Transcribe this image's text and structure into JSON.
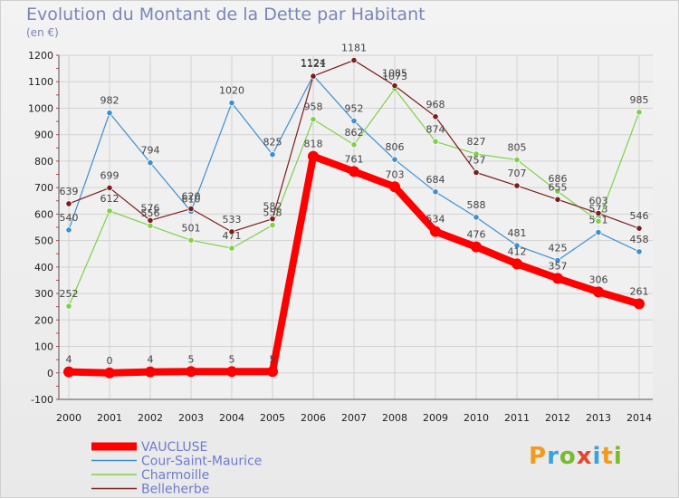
{
  "title": "Evolution du Montant de la Dette par Habitant",
  "subtitle": "(en €)",
  "logo_text": "Proxiti",
  "chart_data": {
    "type": "line",
    "x": [
      "2000",
      "2001",
      "2002",
      "2003",
      "2004",
      "2005",
      "2006",
      "2007",
      "2008",
      "2009",
      "2010",
      "2011",
      "2012",
      "2013",
      "2014"
    ],
    "ylim": [
      -100,
      1200
    ],
    "yticks": [
      -100,
      0,
      100,
      200,
      300,
      400,
      500,
      600,
      700,
      800,
      900,
      1000,
      1100,
      1200
    ],
    "grid": true,
    "legend_position": "bottom-left",
    "series": [
      {
        "name": "VAUCLUSE",
        "color": "#ff0000",
        "values": [
          4,
          0,
          4,
          5,
          5,
          5,
          818,
          761,
          703,
          534,
          476,
          412,
          357,
          306,
          261
        ]
      },
      {
        "name": "Cour-Saint-Maurice",
        "color": "#3d8fd1",
        "values": [
          540,
          982,
          794,
          610,
          1020,
          825,
          1124,
          952,
          806,
          684,
          588,
          481,
          425,
          531,
          458
        ]
      },
      {
        "name": "Charmoille",
        "color": "#7fd04a",
        "values": [
          252,
          612,
          556,
          501,
          471,
          558,
          958,
          862,
          1073,
          874,
          827,
          805,
          686,
          573,
          985
        ]
      },
      {
        "name": "Belleherbe",
        "color": "#7a1e1e",
        "values": [
          639,
          699,
          576,
          620,
          533,
          582,
          1121,
          1181,
          1085,
          968,
          757,
          707,
          655,
          603,
          546
        ]
      }
    ]
  }
}
